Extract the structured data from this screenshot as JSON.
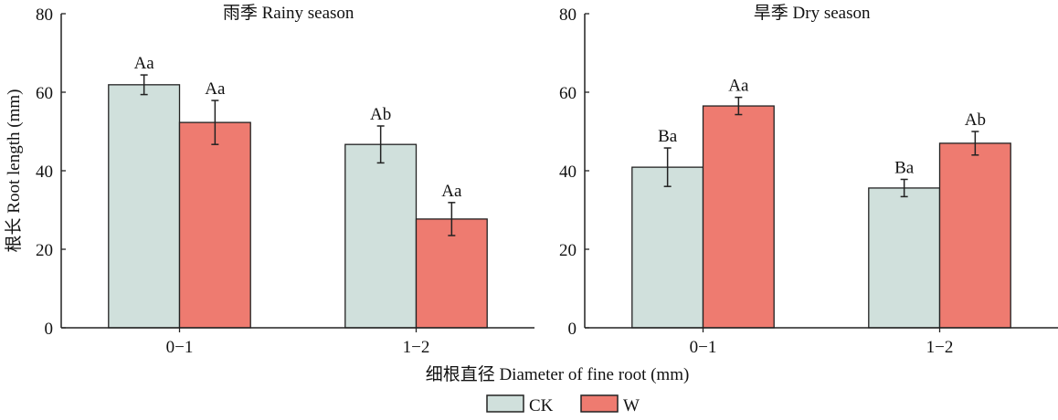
{
  "chart_data": [
    {
      "type": "bar",
      "title": "雨季 Rainy season",
      "categories": [
        "0−1",
        "1−2"
      ],
      "series": [
        {
          "name": "CK",
          "values": [
            61.9,
            46.7
          ],
          "errors": [
            2.5,
            4.7
          ],
          "labels": [
            "Aa",
            "Ab"
          ]
        },
        {
          "name": "W",
          "values": [
            52.3,
            27.7
          ],
          "errors": [
            5.6,
            4.2
          ],
          "labels": [
            "Aa",
            "Aa"
          ]
        }
      ],
      "ylabel": "根长 Root length (mm)",
      "ylim": [
        0,
        80
      ],
      "yticks": [
        "0",
        "20",
        "40",
        "60",
        "80"
      ]
    },
    {
      "type": "bar",
      "title": "旱季 Dry season",
      "categories": [
        "0−1",
        "1−2"
      ],
      "series": [
        {
          "name": "CK",
          "values": [
            40.9,
            35.6
          ],
          "errors": [
            4.9,
            2.2
          ],
          "labels": [
            "Ba",
            "Ba"
          ]
        },
        {
          "name": "W",
          "values": [
            56.5,
            47.0
          ],
          "errors": [
            2.2,
            3.0
          ],
          "labels": [
            "Aa",
            "Ab"
          ]
        }
      ],
      "ylabel": "",
      "ylim": [
        0,
        80
      ],
      "yticks": [
        "0",
        "20",
        "40",
        "60",
        "80"
      ]
    }
  ],
  "xlabel": "细根直径 Diameter of fine root (mm)",
  "legend": {
    "placement": "bottom-center",
    "items": [
      {
        "name": "CK",
        "color": "#d0e0dc"
      },
      {
        "name": "W",
        "color": "#ee7b70"
      }
    ]
  },
  "colors": {
    "CK": "#d0e0dc",
    "W": "#ee7b70",
    "axis": "#222222"
  }
}
